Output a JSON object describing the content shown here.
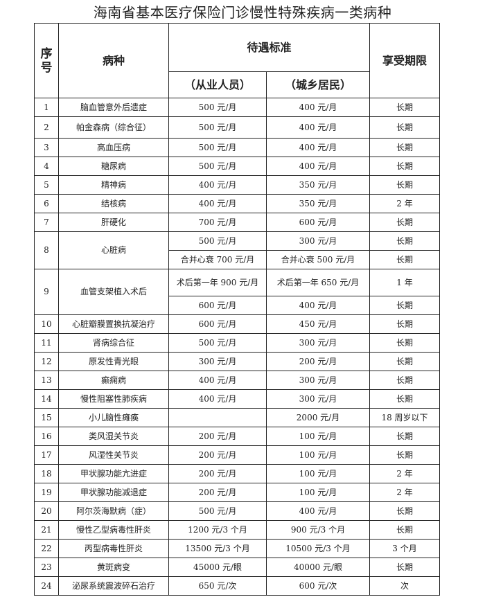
{
  "title": "海南省基本医疗保险门诊慢性特殊疾病一类病种",
  "header": {
    "index": "序号",
    "disease": "病种",
    "standard": "待遇标准",
    "employee": "（从业人员）",
    "resident": "（城乡居民）",
    "period": "享受期限"
  },
  "rows": [
    {
      "no": "1",
      "name": "脑血管意外后遗症",
      "emp": "500 元/月",
      "res": "400 元/月",
      "period": "长期"
    },
    {
      "no": "2",
      "name": "帕金森病（综合征）",
      "emp": "500 元/月",
      "res": "400 元/月",
      "period": "长期"
    },
    {
      "no": "3",
      "name": "高血压病",
      "emp": "500 元/月",
      "res": "400 元/月",
      "period": "长期"
    },
    {
      "no": "4",
      "name": "糖尿病",
      "emp": "500 元/月",
      "res": "400 元/月",
      "period": "长期"
    },
    {
      "no": "5",
      "name": "精神病",
      "emp": "400 元/月",
      "res": "350 元/月",
      "period": "长期"
    },
    {
      "no": "6",
      "name": "结核病",
      "emp": "400 元/月",
      "res": "350 元/月",
      "period": "2 年"
    },
    {
      "no": "7",
      "name": "肝硬化",
      "emp": "700 元/月",
      "res": "600 元/月",
      "period": "长期"
    },
    {
      "no": "8",
      "name": "心脏病",
      "sub": [
        {
          "emp": "500 元/月",
          "res": "300 元/月",
          "period": "长期"
        },
        {
          "emp": "合并心衰 700 元/月",
          "res": "合并心衰 500 元/月",
          "period": "长期"
        }
      ]
    },
    {
      "no": "9",
      "name": "血管支架植入术后",
      "sub": [
        {
          "emp": "术后第一年 900 元/月",
          "res": "术后第一年 650 元/月",
          "period": "1 年"
        },
        {
          "emp": "600 元/月",
          "res": "400 元/月",
          "period": "长期"
        }
      ]
    },
    {
      "no": "10",
      "name": "心脏瓣膜置换抗凝治疗",
      "emp": "600 元/月",
      "res": "450 元/月",
      "period": "长期"
    },
    {
      "no": "11",
      "name": "肾病综合征",
      "emp": "500 元/月",
      "res": "300 元/月",
      "period": "长期"
    },
    {
      "no": "12",
      "name": "原发性青光眼",
      "emp": "300 元/月",
      "res": "200 元/月",
      "period": "长期"
    },
    {
      "no": "13",
      "name": "癫痫病",
      "emp": "400 元/月",
      "res": "300 元/月",
      "period": "长期"
    },
    {
      "no": "14",
      "name": "慢性阻塞性肺疾病",
      "emp": "400 元/月",
      "res": "300 元/月",
      "period": "长期"
    },
    {
      "no": "15",
      "name": "小儿脑性瘫痪",
      "emp": "",
      "res": "2000 元/月",
      "period": "18 周岁以下"
    },
    {
      "no": "16",
      "name": "类风湿关节炎",
      "emp": "200 元/月",
      "res": "100 元/月",
      "period": "长期"
    },
    {
      "no": "17",
      "name": "风湿性关节炎",
      "emp": "200 元/月",
      "res": "100 元/月",
      "period": "长期"
    },
    {
      "no": "18",
      "name": "甲状腺功能亢进症",
      "emp": "200 元/月",
      "res": "100 元/月",
      "period": "2 年"
    },
    {
      "no": "19",
      "name": "甲状腺功能减退症",
      "emp": "200 元/月",
      "res": "100 元/月",
      "period": "2 年"
    },
    {
      "no": "20",
      "name": "阿尔茨海默病（症）",
      "emp": "500 元/月",
      "res": "400 元/月",
      "period": "长期"
    },
    {
      "no": "21",
      "name": "慢性乙型病毒性肝炎",
      "emp": "1200 元/3 个月",
      "res": "900 元/3 个月",
      "period": "长期"
    },
    {
      "no": "22",
      "name": "丙型病毒性肝炎",
      "emp": "13500 元/3 个月",
      "res": "10500 元/3 个月",
      "period": "3 个月"
    },
    {
      "no": "23",
      "name": "黄斑病变",
      "emp": "45000 元/眼",
      "res": "40000 元/眼",
      "period": "长期"
    },
    {
      "no": "24",
      "name": "泌尿系统震波碎石治疗",
      "emp": "650 元/次",
      "res": "600 元/次",
      "period": "次"
    }
  ]
}
